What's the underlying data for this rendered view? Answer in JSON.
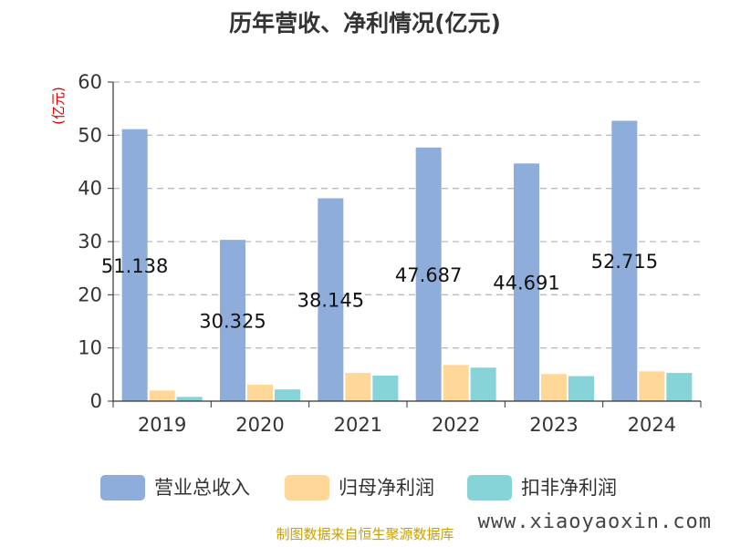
{
  "chart_data": {
    "type": "bar",
    "title": "历年营收、净利情况(亿元)",
    "unit_label": "(亿元)",
    "categories": [
      "2019",
      "2020",
      "2021",
      "2022",
      "2023",
      "2024"
    ],
    "series": [
      {
        "name": "营业总收入",
        "color": "#8EADDB",
        "values": [
          51.138,
          30.325,
          38.145,
          47.687,
          44.691,
          52.715
        ]
      },
      {
        "name": "归母净利润",
        "color": "#FFD899",
        "values": [
          2.0,
          3.1,
          5.3,
          6.8,
          5.1,
          5.6
        ]
      },
      {
        "name": "扣非净利润",
        "color": "#86D4D8",
        "values": [
          0.8,
          2.2,
          4.8,
          6.3,
          4.7,
          5.3
        ]
      }
    ],
    "data_labels": [
      "51.138",
      "30.325",
      "38.145",
      "47.687",
      "44.691",
      "52.715"
    ],
    "y_ticks": [
      "0",
      "10",
      "20",
      "30",
      "40",
      "50",
      "60"
    ],
    "ylim": [
      0,
      60
    ],
    "grid": "horizontal-dashed",
    "legend_position": "bottom"
  },
  "footer": {
    "source": "制图数据来自恒生聚源数据库",
    "watermark": "www.xiaoyaoxin.com"
  }
}
